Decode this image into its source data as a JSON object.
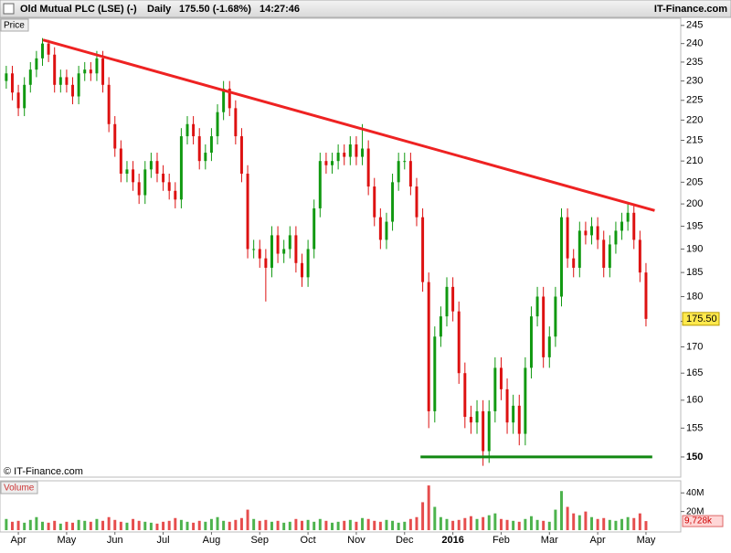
{
  "header": {
    "title": "Old Mutual PLC (LSE) (-)",
    "interval": "Daily",
    "price": "175.50 (-1.68%)",
    "time": "14:27:46",
    "brand": "IT-Finance.com"
  },
  "chart_data": {
    "type": "candlestick",
    "price_label": "Price",
    "volume_label": "Volume",
    "watermark": "© IT-Finance.com",
    "x": [
      -0.25,
      -0.125,
      0,
      0.125,
      0.25,
      0.375,
      0.5,
      0.625,
      0.75,
      0.875,
      1,
      1.125,
      1.25,
      1.375,
      1.5,
      1.625,
      1.75,
      1.875,
      2,
      2.125,
      2.25,
      2.375,
      2.5,
      2.625,
      2.75,
      2.875,
      3,
      3.125,
      3.25,
      3.375,
      3.5,
      3.625,
      3.75,
      3.875,
      4,
      4.125,
      4.25,
      4.375,
      4.5,
      4.625,
      4.75,
      4.875,
      5,
      5.125,
      5.25,
      5.375,
      5.5,
      5.625,
      5.75,
      5.875,
      6,
      6.125,
      6.25,
      6.375,
      6.5,
      6.625,
      6.75,
      6.875,
      7,
      7.125,
      7.25,
      7.375,
      7.5,
      7.625,
      7.75,
      7.875,
      8,
      8.125,
      8.25,
      8.375,
      8.5,
      8.625,
      8.75,
      8.875,
      9,
      9.125,
      9.25,
      9.375,
      9.5,
      9.625,
      9.75,
      9.875,
      10,
      10.125,
      10.25,
      10.375,
      10.5,
      10.625,
      10.75,
      10.875,
      11,
      11.125,
      11.25,
      11.375,
      11.5,
      11.625,
      11.75,
      11.875,
      12,
      12.125,
      12.25,
      12.375,
      12.5,
      12.625,
      12.75,
      12.875,
      13
    ],
    "open": [
      230,
      232,
      227,
      223,
      229,
      233,
      236,
      240,
      237,
      229,
      231,
      229,
      226,
      232,
      233,
      232,
      236,
      229,
      219,
      213,
      207,
      208,
      205,
      202,
      208,
      210,
      207,
      205,
      203,
      201,
      216,
      219,
      216,
      210,
      212,
      216,
      222,
      228,
      223,
      216,
      207,
      190,
      190,
      188,
      186,
      193,
      189,
      190,
      193,
      187,
      184,
      190,
      199,
      210,
      209,
      210,
      212,
      211,
      214,
      211,
      213,
      204,
      197,
      192,
      196,
      205,
      210,
      210,
      204,
      197,
      183,
      158,
      172,
      176,
      182,
      177,
      165,
      157,
      156,
      158,
      151,
      158,
      166,
      162,
      156,
      159,
      154,
      166,
      176,
      180,
      168,
      172,
      180,
      197,
      188,
      186,
      194,
      193,
      195,
      192,
      186,
      191,
      194,
      196,
      198,
      192,
      185
    ],
    "high": [
      234,
      234,
      229,
      231,
      235,
      238,
      241.5,
      241,
      239,
      233,
      233,
      231,
      234,
      235,
      235,
      238,
      238,
      231,
      221,
      215,
      210,
      210,
      207,
      210,
      212,
      212,
      209,
      207,
      205,
      218,
      221,
      221,
      218,
      214,
      218,
      224,
      230,
      230,
      225,
      218,
      209,
      192,
      192,
      190,
      195,
      195,
      192,
      195,
      195,
      189,
      192,
      201,
      212,
      212,
      212,
      214,
      214,
      216,
      216,
      219,
      215,
      206,
      199,
      198,
      207,
      212,
      212,
      212,
      206,
      199,
      185,
      174,
      178,
      184,
      184,
      179,
      167,
      159,
      160,
      160,
      160,
      168,
      168,
      164,
      161,
      161,
      168,
      178,
      182,
      182,
      174,
      182,
      199,
      199,
      190,
      196,
      196,
      197,
      197,
      194,
      193,
      196,
      198,
      200,
      200,
      194,
      187
    ],
    "low": [
      228,
      225,
      221,
      221,
      227,
      231,
      234,
      235,
      227,
      227,
      227,
      224,
      224,
      230,
      230,
      230,
      227,
      217,
      211,
      205,
      205,
      203,
      200,
      200,
      206,
      205,
      203,
      201,
      199,
      199,
      214,
      214,
      208,
      208,
      210,
      214,
      220,
      221,
      214,
      205,
      188,
      188,
      186,
      179,
      184,
      187,
      187,
      188,
      185,
      182,
      182,
      188,
      197,
      207,
      207,
      208,
      209,
      209,
      209,
      209,
      202,
      195,
      190,
      190,
      194,
      203,
      208,
      202,
      195,
      181,
      155,
      156,
      170,
      174,
      175,
      163,
      155,
      154,
      154,
      148.5,
      149,
      156,
      160,
      154,
      154,
      152,
      152,
      164,
      174,
      166,
      166,
      170,
      178,
      186,
      184,
      184,
      191,
      191,
      190,
      184,
      184,
      189,
      192,
      194,
      190,
      183,
      174
    ],
    "close": [
      232,
      227,
      223,
      229,
      233,
      236,
      240,
      237,
      229,
      231,
      229,
      226,
      232,
      233,
      232,
      236,
      229,
      219,
      213,
      207,
      208,
      205,
      202,
      208,
      210,
      207,
      205,
      203,
      201,
      216,
      219,
      216,
      210,
      212,
      216,
      222,
      228,
      223,
      216,
      207,
      190,
      190,
      188,
      186,
      193,
      189,
      190,
      193,
      187,
      184,
      190,
      199,
      210,
      209,
      210,
      212,
      211,
      214,
      211,
      213,
      204,
      197,
      192,
      196,
      205,
      210,
      210,
      204,
      197,
      183,
      158,
      172,
      176,
      182,
      177,
      165,
      157,
      156,
      158,
      151,
      158,
      166,
      162,
      156,
      159,
      154,
      166,
      176,
      180,
      168,
      172,
      180,
      197,
      188,
      186,
      194,
      193,
      195,
      192,
      186,
      191,
      194,
      196,
      198,
      192,
      185,
      175.5
    ],
    "volume": [
      12,
      9,
      10,
      8,
      11,
      14,
      9,
      8,
      10,
      7,
      9,
      8,
      11,
      10,
      9,
      12,
      10,
      14,
      11,
      9,
      8,
      12,
      10,
      9,
      8,
      7,
      9,
      10,
      13,
      11,
      9,
      8,
      10,
      9,
      12,
      14,
      10,
      9,
      11,
      13,
      22,
      12,
      10,
      11,
      9,
      10,
      8,
      9,
      12,
      10,
      11,
      9,
      12,
      10,
      8,
      9,
      10,
      11,
      9,
      13,
      12,
      10,
      9,
      11,
      10,
      8,
      9,
      12,
      14,
      30,
      48,
      25,
      14,
      12,
      10,
      11,
      13,
      15,
      12,
      14,
      16,
      18,
      12,
      11,
      10,
      9,
      12,
      15,
      11,
      10,
      9,
      22,
      42,
      25,
      18,
      16,
      20,
      14,
      12,
      13,
      11,
      10,
      12,
      14,
      13,
      18,
      9.728
    ],
    "xlim": [
      -0.38,
      13.72
    ],
    "xticks": [
      {
        "value": 0,
        "label": "Apr"
      },
      {
        "value": 1,
        "label": "May"
      },
      {
        "value": 2,
        "label": "Jun"
      },
      {
        "value": 3,
        "label": "Jul"
      },
      {
        "value": 4,
        "label": "Aug"
      },
      {
        "value": 5,
        "label": "Sep"
      },
      {
        "value": 6,
        "label": "Oct"
      },
      {
        "value": 7,
        "label": "Nov"
      },
      {
        "value": 8,
        "label": "Dec"
      },
      {
        "value": 9,
        "label": "2016"
      },
      {
        "value": 10,
        "label": "Feb"
      },
      {
        "value": 11,
        "label": "Mar"
      },
      {
        "value": 12,
        "label": "Apr"
      },
      {
        "value": 13,
        "label": "May"
      }
    ],
    "ylim": [
      146.6,
      247
    ],
    "log_scale": true,
    "yticks": [
      245,
      240,
      235,
      230,
      225,
      220,
      215,
      210,
      205,
      200,
      195,
      190,
      185,
      180,
      175,
      170,
      165,
      160,
      155,
      150
    ],
    "volume_ylim": [
      0,
      53
    ],
    "volume_yticks": [
      {
        "value": 40,
        "label": "40M"
      },
      {
        "value": 20,
        "label": "20M"
      }
    ],
    "last_price": {
      "value": 175.5,
      "label": "175.50"
    },
    "last_volume": {
      "value": 9.728,
      "label": "9,728k"
    },
    "up_color": "#119911",
    "down_color": "#dd1111",
    "trendlines": [
      {
        "x": [
          0.51,
          13.18
        ],
        "y": [
          241,
          198.5
        ],
        "color": "#ee2222"
      },
      {
        "x": [
          8.33,
          13.13
        ],
        "y": [
          150,
          150
        ],
        "color": "#118811"
      }
    ]
  }
}
